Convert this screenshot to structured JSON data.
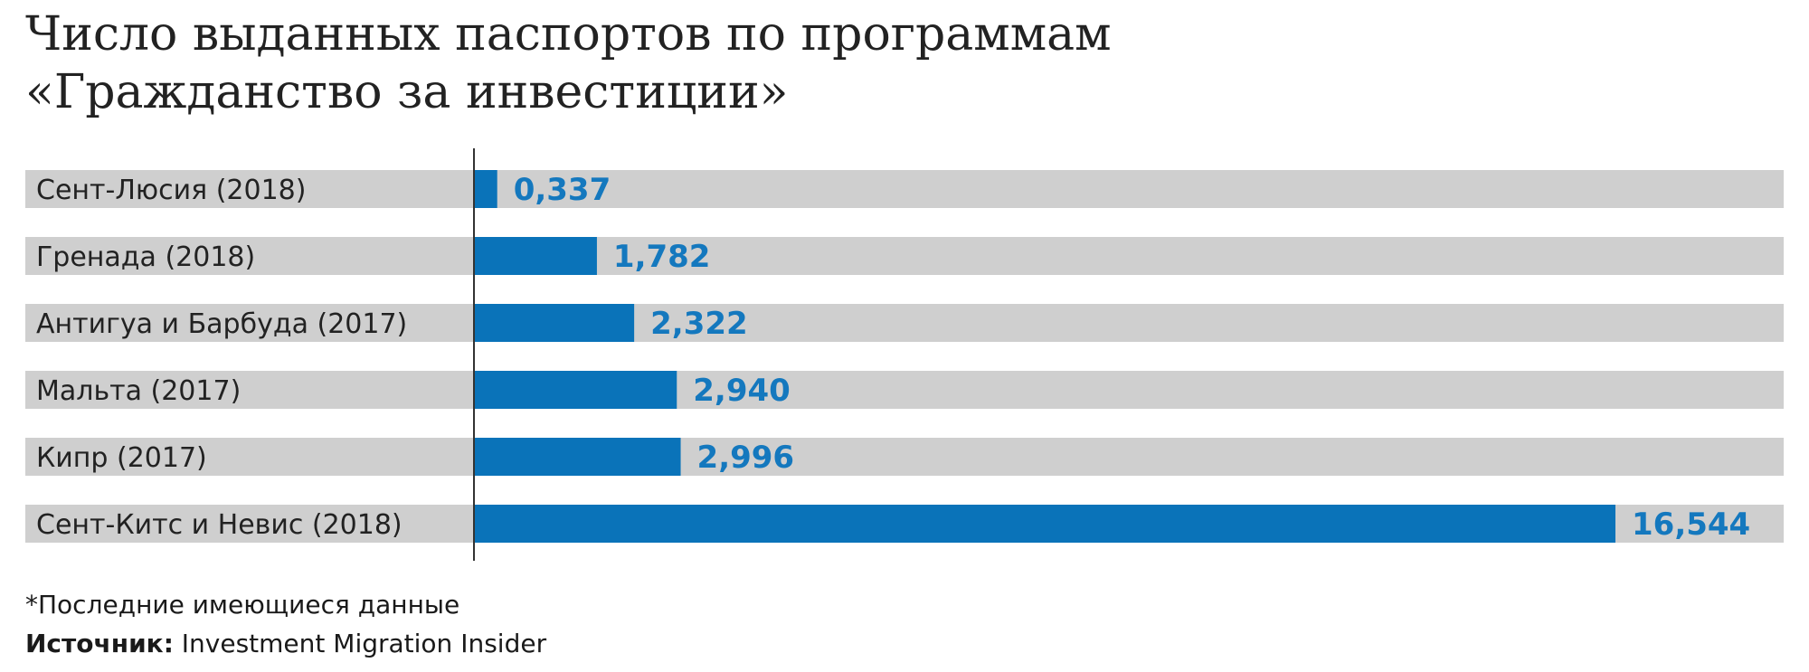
{
  "title": {
    "line1": "Число выданных паспортов по программам",
    "line2": "«Гражданство за инвестиции»"
  },
  "footnote": "*Последние имеющиеся данные",
  "source": {
    "label": "Источник:",
    "text": " Investment Migration Insider"
  },
  "colors": {
    "bar": "#0a73b9",
    "track": "#cfcfcf",
    "value_text": "#1478be",
    "axis": "#333333",
    "label_text": "#222222"
  },
  "chart_data": {
    "type": "bar",
    "orientation": "horizontal",
    "categories": [
      "Сент-Люсия (2018)",
      "Гренада (2018)",
      "Антигуа и Барбуда (2017)",
      "Мальта (2017)",
      "Кипр (2017)",
      "Сент-Китс и Невис (2018)"
    ],
    "values": [
      0.337,
      1.782,
      2.322,
      2.94,
      2.996,
      16.544
    ],
    "value_labels": [
      "0,337",
      "1,782",
      "2,322",
      "2,940",
      "2,996",
      "16,544"
    ],
    "xlim": [
      0,
      16.544
    ],
    "grid": false,
    "legend": "none"
  }
}
